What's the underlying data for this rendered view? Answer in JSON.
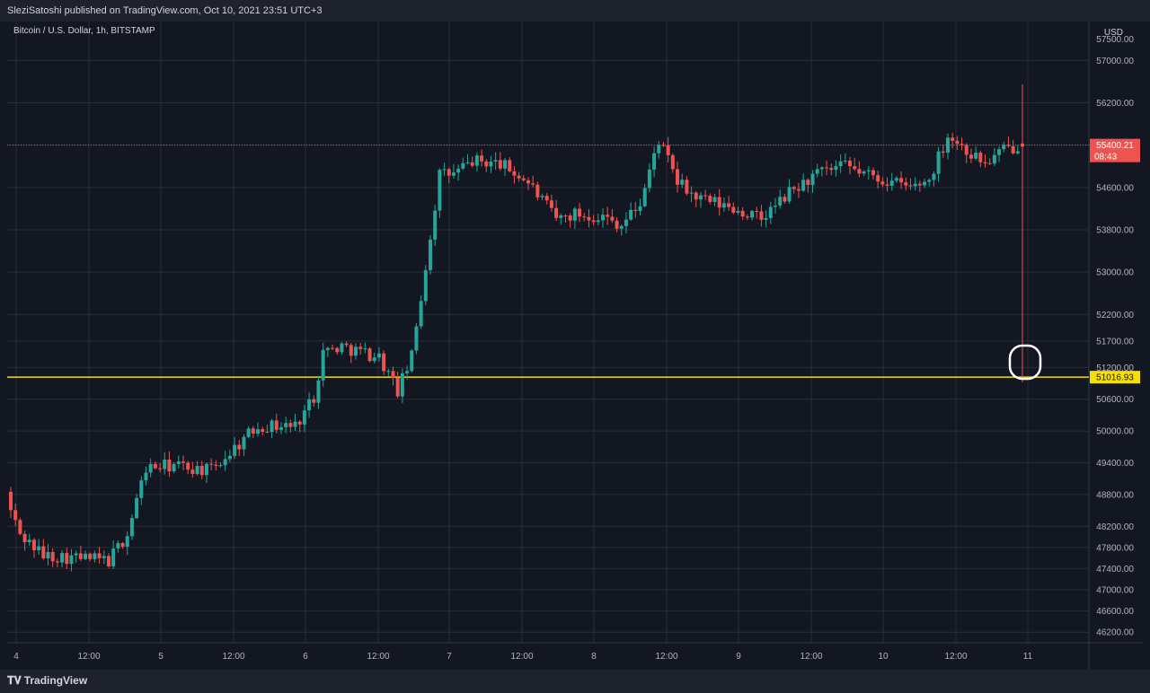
{
  "header": {
    "publisher_line": "SleziSatoshi published on TradingView.com, Oct 10, 2021 23:51 UTC+3"
  },
  "footer": {
    "logo_text": "TradingView",
    "logo_icon": "tradingview-logo-icon"
  },
  "colors": {
    "background": "#131722",
    "grid": "#2a2e39",
    "bull": "#26a69a",
    "bear": "#ef5350",
    "support_line": "#f5e000",
    "annotation": "#ffffff"
  },
  "chart_data": {
    "type": "candlestick",
    "title": "Bitcoin / U.S. Dollar, 1h, BITSTAMP",
    "currency": "USD",
    "y_ticks": [
      57000,
      56200,
      55400,
      54600,
      53800,
      53000,
      52200,
      51700,
      51200,
      50600,
      50000,
      49400,
      48800,
      48200,
      47800,
      47400,
      47000,
      46600,
      46200
    ],
    "ylim": [
      46000,
      57700
    ],
    "top_partial_tick": "57500.00",
    "x_ticks": [
      "4",
      "12:00",
      "5",
      "12:00",
      "6",
      "12:00",
      "7",
      "12:00",
      "8",
      "12:00",
      "9",
      "12:00",
      "10",
      "12:00",
      "11"
    ],
    "current_price": {
      "value": "55400.21",
      "countdown": "08:43"
    },
    "support_level": {
      "value": 51016.93,
      "label": "51016.93"
    },
    "last_candle": {
      "open": 55400,
      "high": 56550,
      "low": 50920,
      "close": 55400
    },
    "anchors": [
      [
        0,
        48700
      ],
      [
        3,
        48050
      ],
      [
        8,
        47650
      ],
      [
        16,
        47600
      ],
      [
        22,
        47550
      ],
      [
        26,
        48050
      ],
      [
        28,
        48700
      ],
      [
        30,
        49300
      ],
      [
        36,
        49350
      ],
      [
        44,
        49250
      ],
      [
        48,
        49600
      ],
      [
        54,
        50100
      ],
      [
        62,
        50100
      ],
      [
        66,
        50650
      ],
      [
        68,
        51500
      ],
      [
        72,
        51600
      ],
      [
        80,
        51400
      ],
      [
        84,
        50750
      ],
      [
        87,
        51400
      ],
      [
        90,
        53100
      ],
      [
        93,
        54850
      ],
      [
        96,
        54850
      ],
      [
        100,
        55100
      ],
      [
        106,
        55050
      ],
      [
        112,
        54700
      ],
      [
        118,
        54000
      ],
      [
        122,
        54100
      ],
      [
        128,
        54050
      ],
      [
        132,
        53900
      ],
      [
        136,
        54300
      ],
      [
        140,
        55500
      ],
      [
        144,
        54700
      ],
      [
        148,
        54400
      ],
      [
        156,
        54200
      ],
      [
        162,
        54000
      ],
      [
        168,
        54500
      ],
      [
        174,
        54850
      ],
      [
        180,
        55000
      ],
      [
        186,
        54800
      ],
      [
        194,
        54600
      ],
      [
        198,
        54750
      ],
      [
        202,
        55600
      ],
      [
        206,
        55300
      ],
      [
        210,
        55050
      ],
      [
        214,
        55300
      ],
      [
        217,
        55400
      ]
    ],
    "label_pattern": [
      0,
      1,
      2
    ],
    "extra_price": "51700.00"
  }
}
